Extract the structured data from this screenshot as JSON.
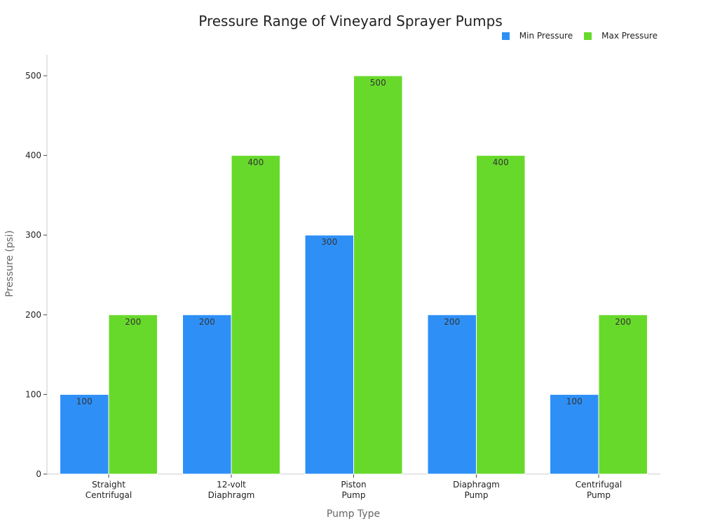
{
  "chart_data": {
    "type": "bar",
    "title": "Pressure Range of Vineyard Sprayer Pumps",
    "xlabel": "Pump Type",
    "ylabel": "Pressure (psi)",
    "categories": [
      [
        "Straight",
        "Centrifugal"
      ],
      [
        "12-volt",
        "Diaphragm"
      ],
      [
        "Piston",
        "Pump"
      ],
      [
        "Diaphragm",
        "Pump"
      ],
      [
        "Centrifugal",
        "Pump"
      ]
    ],
    "series": [
      {
        "name": "Min Pressure",
        "color": "#2e90f7",
        "values": [
          100,
          200,
          300,
          200,
          100
        ]
      },
      {
        "name": "Max Pressure",
        "color": "#67d92b",
        "values": [
          200,
          400,
          500,
          400,
          200
        ]
      }
    ],
    "ylim": [
      0,
      525
    ],
    "yticks": [
      0,
      100,
      200,
      300,
      400,
      500
    ],
    "grid": false,
    "legend_position": "top-right",
    "data_labels": true
  }
}
